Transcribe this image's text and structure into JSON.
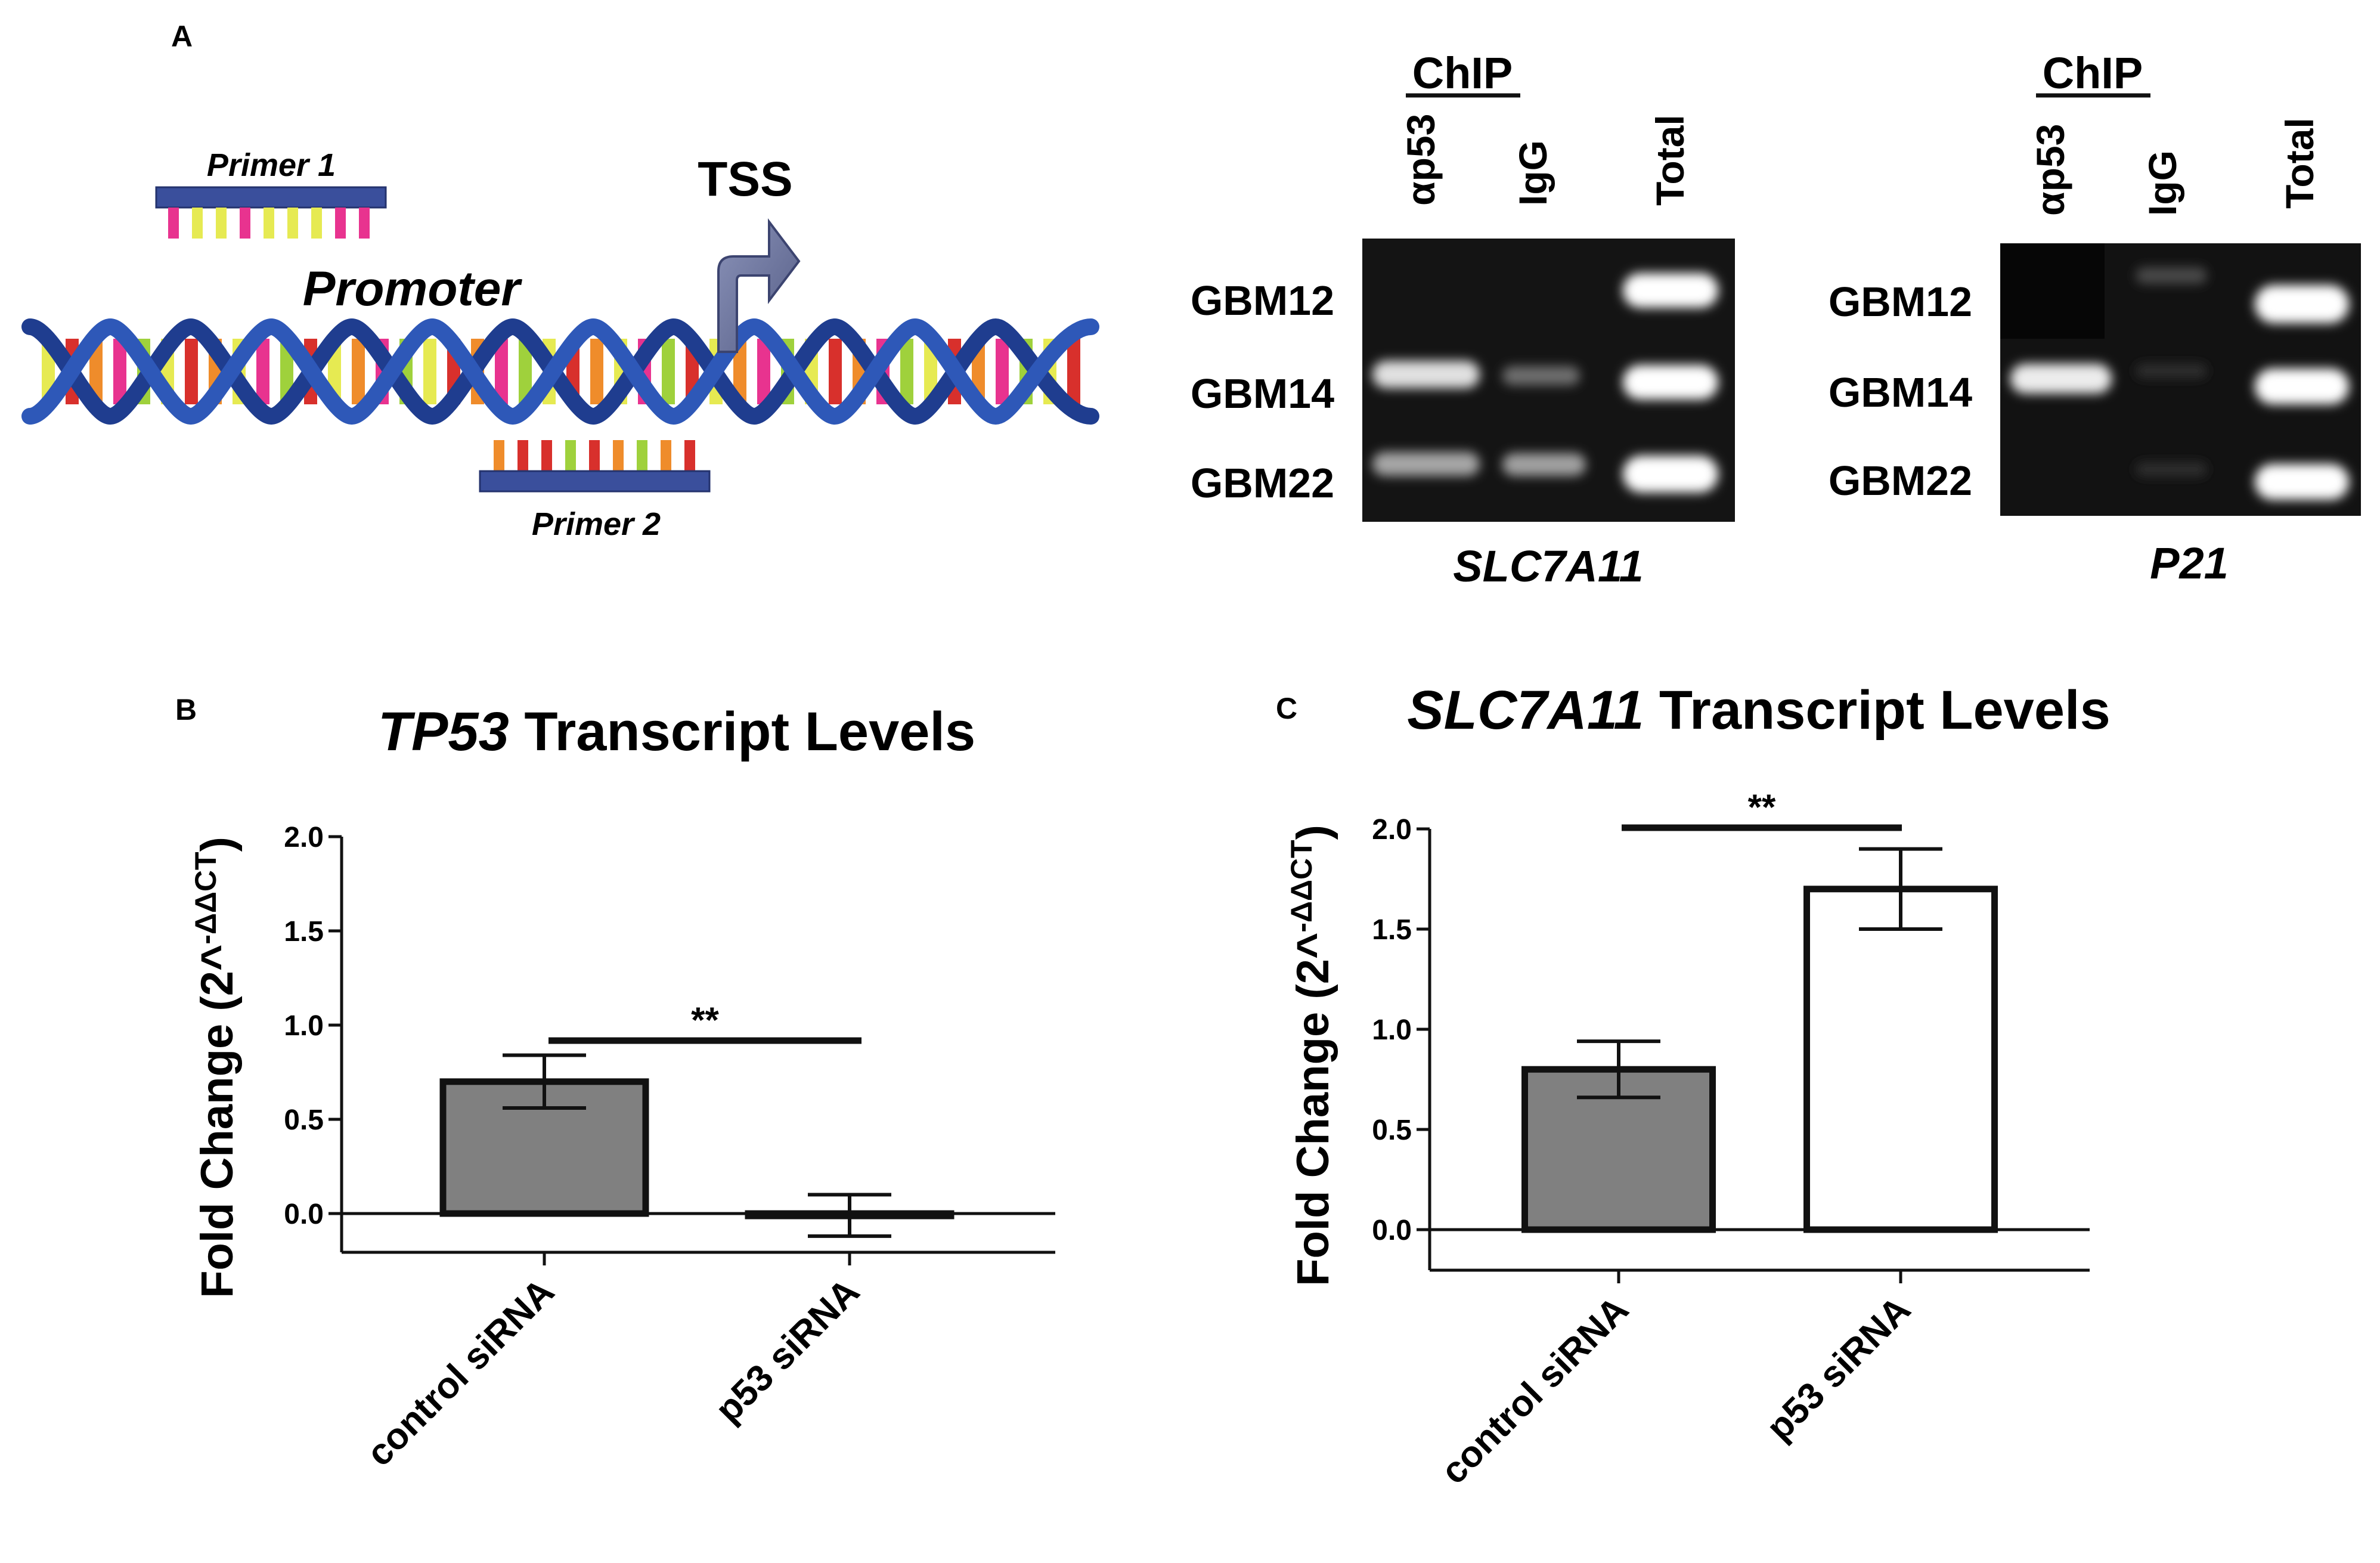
{
  "panels": {
    "a": {
      "label": "A",
      "diagram": {
        "primer1": "Primer 1",
        "primer2": "Primer 2",
        "promoter": "Promoter",
        "tss": "TSS"
      },
      "gels": [
        {
          "header": "ChIP",
          "lanes": [
            "αp53",
            "IgG",
            "Total"
          ],
          "rows": [
            "GBM12",
            "GBM14",
            "GBM22"
          ],
          "caption": "SLC7A11"
        },
        {
          "header": "ChIP",
          "lanes": [
            "αp53",
            "IgG",
            "Total"
          ],
          "rows": [
            "GBM12",
            "GBM14",
            "GBM22"
          ],
          "caption": "P21"
        }
      ]
    },
    "b": {
      "label": "B",
      "title_gene": "TP53",
      "title_rest": " Transcript Levels"
    },
    "c": {
      "label": "C",
      "title_gene": "SLC7A11",
      "title_rest": " Transcript Levels"
    }
  },
  "chart_data": [
    {
      "type": "bar",
      "title": "TP53 Transcript Levels",
      "ylabel_main": "Fold Change (2^",
      "ylabel_sup": "-ΔΔCT",
      "ylabel_end": ")",
      "ylim": [
        -0.2,
        2.0
      ],
      "yticks": [
        "2.0",
        "1.5",
        "1.0",
        "0.5",
        "0.0"
      ],
      "categories": [
        "control siRNA",
        "p53 siRNA"
      ],
      "values": [
        0.7,
        -0.01
      ],
      "errors": [
        0.14,
        0.11
      ],
      "colors": [
        "#808080",
        "#ffffff"
      ],
      "significance": "**"
    },
    {
      "type": "bar",
      "title": "SLC7A11 Transcript Levels",
      "ylabel_main": "Fold Change (2^",
      "ylabel_sup": "-ΔΔCT",
      "ylabel_end": ")",
      "ylim": [
        -0.2,
        2.0
      ],
      "yticks": [
        "2.0",
        "1.5",
        "1.0",
        "0.5",
        "0.0"
      ],
      "categories": [
        "control siRNA",
        "p53 siRNA"
      ],
      "values": [
        0.8,
        1.7
      ],
      "errors": [
        0.14,
        0.2
      ],
      "colors": [
        "#808080",
        "#ffffff"
      ],
      "significance": "**"
    }
  ]
}
